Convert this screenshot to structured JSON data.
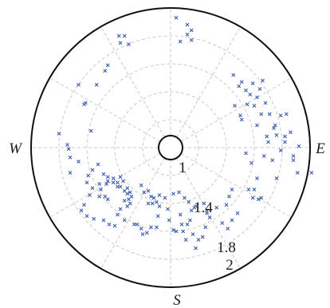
{
  "chart_data": {
    "type": "scatter",
    "projection": "polar",
    "title": "",
    "marker": "x",
    "marker_color": "#3d5fb4",
    "grid": true,
    "grid_style": "dashed",
    "compass": {
      "north": "",
      "east": "E",
      "south": "S",
      "west": "W"
    },
    "radial_ticks": [
      "1",
      "1.4",
      "1.8",
      "2"
    ],
    "radial_range": [
      0.7,
      2.0
    ],
    "series": [
      {
        "x": [
          0.04,
          0.12,
          0.15,
          0.12,
          0.15,
          0.07,
          -0.37,
          -0.36,
          -0.33,
          -0.3,
          0.51,
          0.45,
          0.49,
          0.54,
          0.59,
          0.57,
          0.62,
          0.64,
          0.66,
          0.6,
          0.68,
          0.65,
          0.71,
          0.55,
          0.51,
          0.7,
          0.74,
          0.76,
          0.82,
          0.86,
          0.75,
          0.79,
          0.82,
          0.67,
          0.88,
          0.91,
          0.92,
          0.76,
          0.73,
          0.88,
          0.62,
          0.56,
          0.59,
          0.65,
          1.01,
          0.58,
          0.54,
          0.5,
          0.83,
          0.79,
          0.62,
          0.69,
          0.46,
          -0.45,
          -0.47,
          -0.53,
          -0.61,
          -0.66,
          -0.62,
          -0.57,
          -0.8,
          -0.74,
          -0.73,
          -0.72,
          -0.66,
          -0.72,
          -0.52,
          -0.56,
          -0.59,
          -0.6,
          -0.56,
          -0.45,
          -0.51,
          -0.48,
          -0.45,
          -0.41,
          -0.5,
          -0.47,
          -0.45,
          -0.38,
          -0.38,
          -0.36,
          -0.34,
          -0.36,
          -0.41,
          -0.33,
          -0.31,
          -0.31,
          -0.29,
          -0.28,
          -0.3,
          -0.29,
          -0.33,
          -0.31,
          -0.36,
          -0.38,
          -0.21,
          -0.19,
          -0.16,
          -0.14,
          -0.16,
          -0.13,
          -0.12,
          -0.1,
          -0.08,
          -0.04,
          -0.08,
          -0.02,
          0.02,
          0.06,
          0.1,
          0.13,
          0.15,
          0.18,
          0.24,
          0.26,
          0.28,
          0.14,
          0.08,
          0.04,
          -0.01,
          -0.09,
          -0.14,
          -0.2,
          -0.24,
          -0.46,
          -0.51,
          -0.58,
          -0.62,
          -0.64,
          -0.6,
          -0.55,
          -0.48,
          -0.44,
          -0.4,
          -0.33,
          -0.26,
          -0.21,
          -0.17,
          -0.1,
          0.02,
          0.09,
          0.12,
          0.16,
          0.2,
          0.25,
          0.26,
          0.33,
          0.37,
          0.4,
          0.42,
          0.44,
          0.48,
          0.6,
          0.63,
          0.44,
          0.41,
          0.11,
          0.18,
          0.23,
          0.07,
          0.17
        ],
        "y": [
          0.93,
          0.88,
          0.84,
          0.81,
          0.77,
          0.76,
          0.8,
          0.75,
          0.8,
          0.74,
          0.47,
          0.52,
          0.44,
          0.41,
          0.46,
          0.38,
          0.36,
          0.42,
          0.48,
          0.3,
          0.32,
          0.24,
          0.24,
          0.31,
          0.2,
          0.04,
          0.14,
          0.09,
          0.08,
          0.11,
          0.16,
          -0.02,
          0.04,
          -0.06,
          -0.09,
          -0.18,
          0.01,
          -0.22,
          -0.09,
          -0.06,
          -0.22,
          -0.3,
          -0.36,
          -0.36,
          -0.18,
          -0.11,
          -0.04,
          0.23,
          0.24,
          0.23,
          0.16,
          0.08,
          0.3,
          0.59,
          0.55,
          0.45,
          0.32,
          0.45,
          0.31,
          0.12,
          0.1,
          0.02,
          -0.01,
          -0.07,
          -0.1,
          -0.18,
          -0.12,
          -0.16,
          -0.2,
          -0.25,
          -0.29,
          -0.21,
          -0.26,
          -0.19,
          -0.24,
          -0.25,
          -0.3,
          -0.35,
          -0.37,
          -0.25,
          -0.28,
          -0.28,
          -0.24,
          -0.21,
          -0.22,
          -0.31,
          -0.29,
          -0.33,
          -0.32,
          -0.35,
          -0.37,
          -0.4,
          -0.38,
          -0.42,
          -0.44,
          -0.48,
          -0.27,
          -0.32,
          -0.31,
          -0.35,
          -0.4,
          -0.4,
          -0.36,
          -0.39,
          -0.34,
          -0.36,
          -0.42,
          -0.44,
          -0.33,
          -0.32,
          -0.36,
          -0.39,
          -0.45,
          -0.42,
          -0.4,
          -0.45,
          -0.5,
          -0.52,
          -0.55,
          -0.6,
          -0.52,
          -0.49,
          -0.57,
          -0.62,
          -0.55,
          -0.26,
          -0.35,
          -0.34,
          -0.41,
          -0.45,
          -0.49,
          -0.51,
          -0.52,
          -0.55,
          -0.56,
          -0.52,
          -0.55,
          -0.58,
          -0.61,
          -0.57,
          -0.59,
          -0.6,
          -0.55,
          -0.62,
          -0.66,
          -0.57,
          -0.47,
          -0.43,
          -0.54,
          -0.41,
          -0.35,
          -0.3,
          -0.47,
          -0.3,
          -0.37,
          -0.52,
          -0.58,
          -0.66,
          -0.72,
          -0.64,
          -0.48,
          -0.43
        ]
      }
    ]
  }
}
